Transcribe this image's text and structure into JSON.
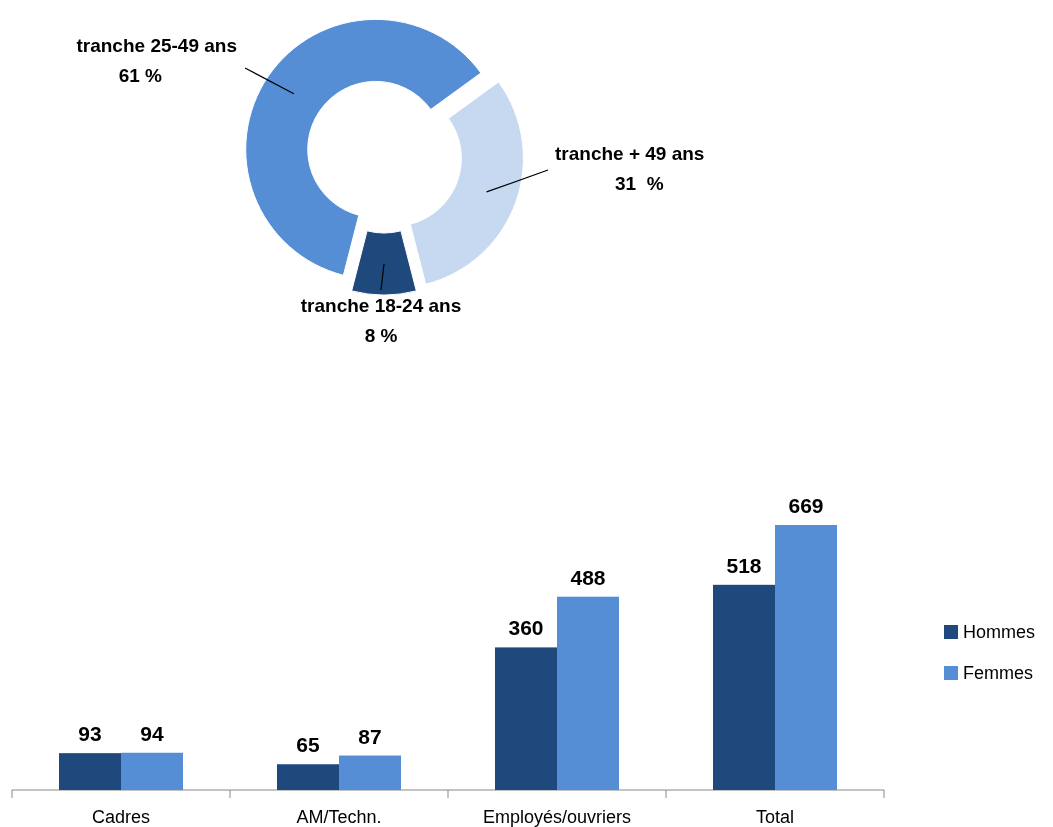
{
  "chart_data": [
    {
      "type": "donut",
      "categories": [
        "tranche + 49 ans",
        "tranche 18-24 ans",
        "tranche 25-49 ans"
      ],
      "values": [
        31,
        8,
        61
      ],
      "colors": [
        "#c6d9f1",
        "#1f497d",
        "#558ed5"
      ],
      "value_labels": [
        "31  %",
        "8 %",
        "61 %"
      ]
    },
    {
      "type": "bar",
      "categories": [
        "Cadres",
        "AM/Techn.",
        "Employés/ouvriers",
        "Total"
      ],
      "legend": "right",
      "data_labels": true,
      "series": [
        {
          "name": "Hommes",
          "color": "#1f497d",
          "values": [
            93,
            65,
            360,
            518
          ]
        },
        {
          "name": "Femmes",
          "color": "#558ed5",
          "values": [
            94,
            87,
            488,
            669
          ]
        }
      ]
    }
  ]
}
